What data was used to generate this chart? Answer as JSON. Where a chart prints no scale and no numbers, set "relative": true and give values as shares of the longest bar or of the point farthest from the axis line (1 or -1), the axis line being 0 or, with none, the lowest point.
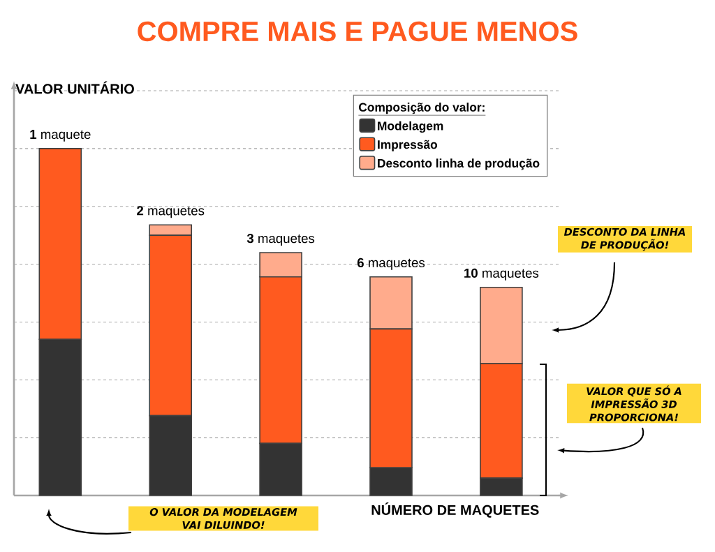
{
  "chart_data": {
    "type": "bar",
    "stacked": true,
    "relative": true,
    "grid": "y",
    "legend": "top right",
    "title": "COMPRE MAIS E PAGUE MENOS",
    "ylabel": "VALOR UNITÁRIO",
    "xlabel": "NÚMERO DE MAQUETES",
    "legend_title": "Composição do valor:",
    "categories": [
      "**1** maquete",
      "**2** maquetes",
      "**3** maquetes",
      "**6** maquetes",
      "**10** maquetes"
    ],
    "series": [
      {
        "name": "Modelagem",
        "color": "#333333",
        "values": [
          0.45,
          0.23,
          0.15,
          0.08,
          0.05
        ]
      },
      {
        "name": "Impressão",
        "color": "#ff5a1f",
        "values": [
          0.55,
          0.52,
          0.48,
          0.4,
          0.33
        ]
      },
      {
        "name": "Desconto linha de produção",
        "color": "#ffab8c",
        "values": [
          0,
          0.03,
          0.07,
          0.15,
          0.22
        ]
      }
    ],
    "annotations": [
      "DESCONTO DA LINHA DE PRODUÇÃO!",
      "VALOR QUE SÓ A IMPRESSÃO 3D PROPORCIONA!",
      "O VALOR DA MODELAGEM VAI DILUINDO!"
    ]
  }
}
